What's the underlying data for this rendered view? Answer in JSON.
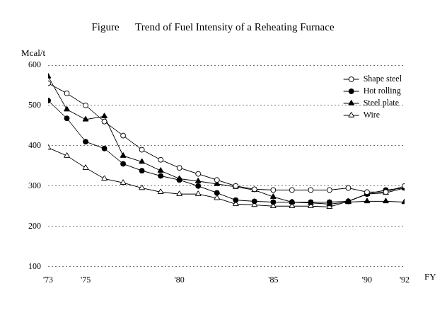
{
  "chart_data": {
    "type": "line",
    "title": "Figure      Trend of Fuel Intensity of a Reheating Furnace",
    "y_label": "Mcal/t",
    "x_label": "FY",
    "categories": [
      "'73",
      null,
      "'75",
      null,
      null,
      null,
      null,
      "'80",
      null,
      null,
      null,
      null,
      "'85",
      null,
      null,
      null,
      null,
      "'90",
      null,
      "'92"
    ],
    "series": [
      {
        "name": "Shape steel",
        "color": "#000000",
        "marker": "circle_open",
        "line_style": "solid",
        "values": [
          555,
          530,
          500,
          460,
          425,
          390,
          365,
          345,
          330,
          315,
          300,
          292,
          290,
          290,
          290,
          290,
          295,
          285,
          285,
          300
        ]
      },
      {
        "name": "Hot rolling",
        "color": "#000000",
        "marker": "circle",
        "line_style": "solid",
        "values": [
          512,
          468,
          410,
          393,
          355,
          338,
          325,
          315,
          300,
          283,
          265,
          262,
          260,
          260,
          260,
          260,
          262,
          280,
          290,
          295
        ]
      },
      {
        "name": "Steel plate",
        "color": "#000000",
        "marker": "triangle",
        "line_style": "solid",
        "values": [
          572,
          490,
          465,
          473,
          375,
          360,
          338,
          318,
          312,
          305,
          298,
          290,
          273,
          260,
          258,
          255,
          260,
          262,
          262,
          260
        ]
      },
      {
        "name": "Wire",
        "color": "#000000",
        "marker": "triangle_open",
        "line_style": "solid",
        "values": [
          395,
          375,
          345,
          318,
          308,
          295,
          285,
          280,
          280,
          270,
          255,
          253,
          250,
          250,
          250,
          248,
          262,
          280,
          283,
          295
        ]
      }
    ],
    "ylim": [
      100,
      600
    ],
    "yticks": [
      100,
      200,
      300,
      400,
      500,
      600
    ],
    "grid": "y",
    "legend": "top-right"
  }
}
